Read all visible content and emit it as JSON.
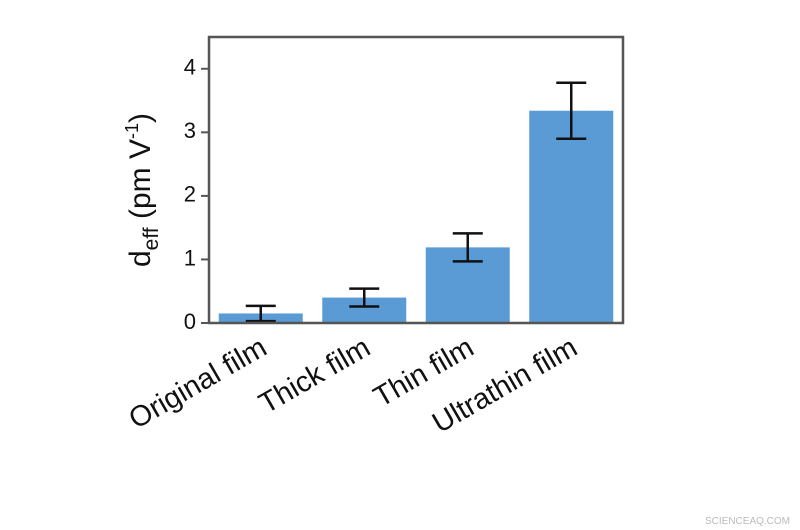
{
  "chart_data": {
    "type": "bar",
    "y_label": {
      "main": "d",
      "sub": "eff",
      "text": " (pm V",
      "sup": "-1",
      "end": ")"
    },
    "categories": [
      "Original film",
      "Thick film",
      "Thin film",
      "Ultrathin film"
    ],
    "values": [
      0.15,
      0.4,
      1.19,
      3.34
    ],
    "errors": [
      0.12,
      0.14,
      0.22,
      0.44
    ],
    "color": "#5b9bd5",
    "ylim": [
      0,
      4.5
    ],
    "yticks": [
      0,
      1,
      2,
      3,
      4
    ]
  },
  "watermark": "SCIENCEAQ.COM"
}
